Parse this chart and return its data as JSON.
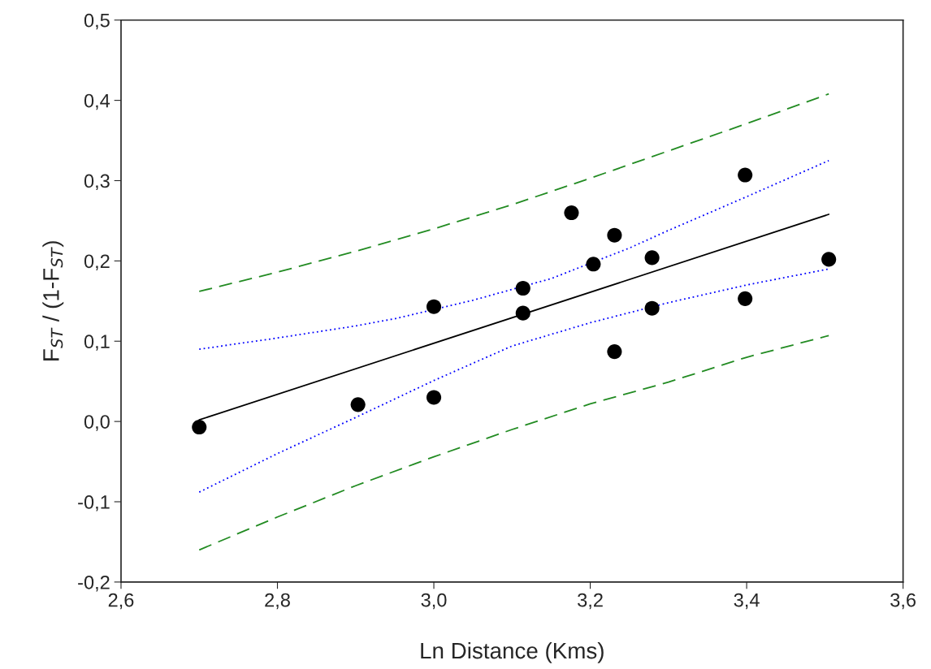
{
  "chart_data": {
    "type": "scatter",
    "xlabel": "Ln Distance (Kms)",
    "ylabel": "F$_{ST}$ / (1-F$_{ST}$)",
    "xlim": [
      2.6,
      3.6
    ],
    "ylim": [
      -0.2,
      0.5
    ],
    "xticks": [
      {
        "value": 2.6,
        "label": "2,6"
      },
      {
        "value": 2.8,
        "label": "2,8"
      },
      {
        "value": 3.0,
        "label": "3,0"
      },
      {
        "value": 3.2,
        "label": "3,2"
      },
      {
        "value": 3.4,
        "label": "3,4"
      },
      {
        "value": 3.6,
        "label": "3,6"
      }
    ],
    "yticks": [
      {
        "value": -0.2,
        "label": "-0,2"
      },
      {
        "value": -0.1,
        "label": "-0,1"
      },
      {
        "value": 0.0,
        "label": "0,0"
      },
      {
        "value": 0.1,
        "label": "0,1"
      },
      {
        "value": 0.2,
        "label": "0,2"
      },
      {
        "value": 0.3,
        "label": "0,3"
      },
      {
        "value": 0.4,
        "label": "0,4"
      },
      {
        "value": 0.5,
        "label": "0,5"
      }
    ],
    "grid": false,
    "legend": false,
    "series": [
      {
        "color": "#000000",
        "marker": "circle",
        "x": [
          2.7,
          2.903,
          3.0,
          3.0,
          3.114,
          3.114,
          3.176,
          3.204,
          3.231,
          3.231,
          3.279,
          3.279,
          3.398,
          3.398,
          3.505
        ],
        "values": [
          -0.007,
          0.021,
          0.03,
          0.143,
          0.166,
          0.135,
          0.26,
          0.196,
          0.232,
          0.087,
          0.204,
          0.141,
          0.307,
          0.153,
          0.202
        ]
      },
      {
        "type": "line",
        "color": "#000000",
        "line_style": "solid",
        "x": [
          2.7,
          3.505
        ],
        "values": [
          0.002,
          0.258
        ]
      },
      {
        "type": "line",
        "color": "#0000ff",
        "line_style": "dotted",
        "x": [
          2.7,
          2.8,
          2.9,
          2.95,
          3.05,
          3.15,
          3.25,
          3.3,
          3.4,
          3.505
        ],
        "values": [
          0.09,
          0.104,
          0.119,
          0.128,
          0.151,
          0.178,
          0.216,
          0.238,
          0.28,
          0.325
        ]
      },
      {
        "type": "line",
        "color": "#0000ff",
        "line_style": "dotted",
        "x": [
          2.7,
          2.8,
          2.9,
          3.0,
          3.1,
          3.2,
          3.3,
          3.4,
          3.505
        ],
        "values": [
          -0.088,
          -0.04,
          0.005,
          0.051,
          0.094,
          0.123,
          0.148,
          0.17,
          0.19
        ]
      },
      {
        "type": "line",
        "color": "#228b22",
        "line_style": "dashed",
        "x": [
          2.7,
          2.8,
          2.9,
          3.0,
          3.1,
          3.2,
          3.3,
          3.4,
          3.505
        ],
        "values": [
          0.162,
          0.186,
          0.212,
          0.24,
          0.27,
          0.303,
          0.337,
          0.371,
          0.408
        ]
      },
      {
        "type": "line",
        "color": "#228b22",
        "line_style": "dashed",
        "x": [
          2.7,
          2.8,
          2.9,
          3.0,
          3.1,
          3.2,
          3.3,
          3.4,
          3.505
        ],
        "values": [
          -0.16,
          -0.119,
          -0.08,
          -0.044,
          -0.01,
          0.022,
          0.049,
          0.08,
          0.107
        ]
      }
    ]
  }
}
